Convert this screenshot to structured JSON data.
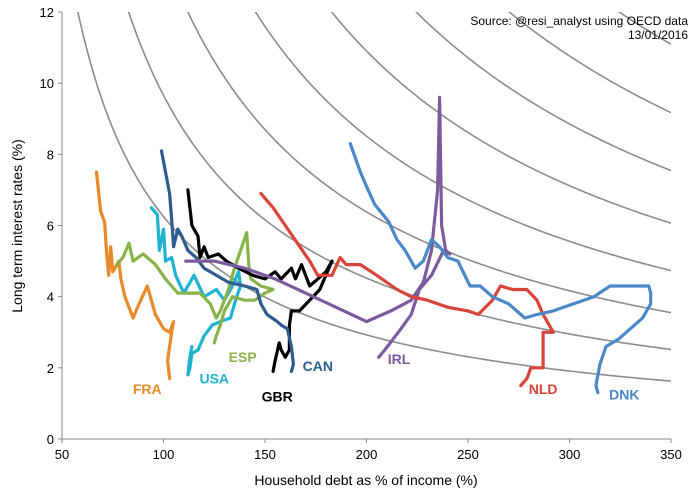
{
  "chart_data": {
    "type": "line",
    "title": "",
    "xlabel": "Household debt as % of income (%)",
    "ylabel": "Long term interest rates (%)",
    "xlim": [
      50,
      350
    ],
    "ylim": [
      0,
      12
    ],
    "xticks": [
      50,
      100,
      150,
      200,
      250,
      300,
      350
    ],
    "yticks": [
      0,
      2,
      4,
      6,
      8,
      10,
      12
    ],
    "grid": false,
    "source_line1": "Source: @resi_analyst using OECD data",
    "source_line2": "13/01/2016",
    "iso_curve_color": "#8c8c8c",
    "iso_curves": [
      {
        "k": 0.55
      },
      {
        "k": 0.85
      },
      {
        "k": 1.2
      },
      {
        "k": 1.6
      },
      {
        "k": 2.05
      },
      {
        "k": 2.55
      },
      {
        "k": 3.1
      },
      {
        "k": 3.75
      },
      {
        "k": 4.45
      }
    ],
    "series": [
      {
        "name": "FRA",
        "color": "#e8892a",
        "points": [
          [
            67,
            7.5
          ],
          [
            69,
            6.4
          ],
          [
            71,
            6.1
          ],
          [
            72,
            5.2
          ],
          [
            73,
            4.6
          ],
          [
            74,
            5.4
          ],
          [
            75,
            4.7
          ],
          [
            78,
            5.0
          ],
          [
            79,
            4.5
          ],
          [
            81,
            4.0
          ],
          [
            85,
            3.4
          ],
          [
            88,
            3.8
          ],
          [
            92,
            4.3
          ],
          [
            96,
            3.5
          ],
          [
            100,
            3.1
          ],
          [
            103,
            3.0
          ],
          [
            105,
            3.3
          ],
          [
            104,
            3.0
          ],
          [
            102,
            2.2
          ],
          [
            103,
            1.7
          ]
        ]
      },
      {
        "name": "USA",
        "color": "#1db3d1",
        "points": [
          [
            94,
            6.5
          ],
          [
            97,
            6.3
          ],
          [
            98,
            5.3
          ],
          [
            100,
            5.9
          ],
          [
            101,
            5.0
          ],
          [
            104,
            5.1
          ],
          [
            106,
            4.6
          ],
          [
            110,
            4.1
          ],
          [
            115,
            4.6
          ],
          [
            120,
            4.0
          ],
          [
            126,
            4.2
          ],
          [
            130,
            3.9
          ],
          [
            134,
            4.3
          ],
          [
            137,
            4.7
          ],
          [
            138,
            4.3
          ],
          [
            136,
            4.0
          ],
          [
            135,
            3.8
          ],
          [
            133,
            3.4
          ],
          [
            128,
            3.3
          ],
          [
            124,
            3.2
          ],
          [
            120,
            2.9
          ],
          [
            117,
            2.5
          ],
          [
            114,
            2.4
          ],
          [
            113,
            2.0
          ],
          [
            112,
            1.8
          ],
          [
            113,
            2.3
          ],
          [
            114,
            2.6
          ]
        ]
      },
      {
        "name": "ESP",
        "color": "#88b34a",
        "points": [
          [
            77,
            4.9
          ],
          [
            80,
            5.1
          ],
          [
            83,
            5.5
          ],
          [
            85,
            5.0
          ],
          [
            90,
            5.2
          ],
          [
            96,
            4.9
          ],
          [
            101,
            4.5
          ],
          [
            104,
            4.3
          ],
          [
            107,
            4.1
          ],
          [
            113,
            4.1
          ],
          [
            118,
            4.1
          ],
          [
            123,
            3.8
          ],
          [
            126,
            3.4
          ],
          [
            128,
            3.6
          ],
          [
            132,
            4.2
          ],
          [
            135,
            4.8
          ],
          [
            138,
            5.3
          ],
          [
            141,
            5.8
          ],
          [
            142,
            4.9
          ],
          [
            143,
            4.5
          ],
          [
            148,
            4.3
          ],
          [
            154,
            4.2
          ],
          [
            150,
            4.1
          ],
          [
            145,
            3.9
          ],
          [
            140,
            3.9
          ],
          [
            134,
            4.0
          ],
          [
            130,
            3.6
          ],
          [
            128,
            3.2
          ],
          [
            126,
            2.9
          ],
          [
            125,
            2.7
          ]
        ]
      },
      {
        "name": "GBR",
        "color": "#000000",
        "points": [
          [
            112,
            7.0
          ],
          [
            114,
            6.0
          ],
          [
            117,
            5.7
          ],
          [
            118,
            5.1
          ],
          [
            120,
            5.4
          ],
          [
            122,
            5.1
          ],
          [
            127,
            5.2
          ],
          [
            131,
            5.0
          ],
          [
            137,
            4.8
          ],
          [
            144,
            4.6
          ],
          [
            150,
            4.5
          ],
          [
            155,
            4.7
          ],
          [
            158,
            4.5
          ],
          [
            163,
            4.8
          ],
          [
            165,
            4.5
          ],
          [
            168,
            4.9
          ],
          [
            170,
            4.6
          ],
          [
            172,
            4.3
          ],
          [
            176,
            4.5
          ],
          [
            180,
            4.7
          ],
          [
            183,
            5.0
          ],
          [
            177,
            4.2
          ],
          [
            172,
            3.9
          ],
          [
            167,
            3.6
          ],
          [
            163,
            3.6
          ],
          [
            162,
            3.2
          ],
          [
            162,
            2.5
          ],
          [
            160,
            2.3
          ],
          [
            158,
            2.5
          ],
          [
            157,
            2.7
          ],
          [
            155,
            2.2
          ],
          [
            154,
            1.9
          ]
        ]
      },
      {
        "name": "CAN",
        "color": "#2e5c8f",
        "points": [
          [
            99,
            8.1
          ],
          [
            101,
            7.5
          ],
          [
            103,
            6.9
          ],
          [
            104,
            6.2
          ],
          [
            105,
            5.4
          ],
          [
            107,
            5.9
          ],
          [
            109,
            5.7
          ],
          [
            112,
            5.3
          ],
          [
            116,
            5.1
          ],
          [
            120,
            4.8
          ],
          [
            126,
            4.6
          ],
          [
            132,
            4.4
          ],
          [
            140,
            4.3
          ],
          [
            146,
            4.2
          ],
          [
            148,
            3.8
          ],
          [
            151,
            3.5
          ],
          [
            156,
            3.3
          ],
          [
            158,
            3.2
          ],
          [
            161,
            3.1
          ],
          [
            163,
            2.6
          ],
          [
            164,
            2.1
          ],
          [
            163,
            1.9
          ]
        ]
      },
      {
        "name": "IRL",
        "color": "#7b5a9e",
        "points": [
          [
            111,
            5.0
          ],
          [
            125,
            5.0
          ],
          [
            140,
            4.8
          ],
          [
            155,
            4.5
          ],
          [
            170,
            4.1
          ],
          [
            185,
            3.7
          ],
          [
            200,
            3.3
          ],
          [
            212,
            3.6
          ],
          [
            222,
            3.9
          ],
          [
            228,
            4.4
          ],
          [
            232,
            5.3
          ],
          [
            235,
            7.0
          ],
          [
            236,
            9.6
          ],
          [
            237,
            6.0
          ],
          [
            239,
            5.3
          ],
          [
            241,
            5.2
          ],
          [
            238,
            5.3
          ],
          [
            232,
            4.6
          ],
          [
            226,
            4.2
          ],
          [
            222,
            3.5
          ],
          [
            217,
            3.1
          ],
          [
            213,
            2.8
          ],
          [
            209,
            2.5
          ],
          [
            206,
            2.3
          ]
        ]
      },
      {
        "name": "NLD",
        "color": "#d9443a",
        "points": [
          [
            148,
            6.9
          ],
          [
            154,
            6.5
          ],
          [
            160,
            6.0
          ],
          [
            166,
            5.5
          ],
          [
            172,
            5.0
          ],
          [
            176,
            4.6
          ],
          [
            183,
            4.6
          ],
          [
            187,
            5.1
          ],
          [
            190,
            4.9
          ],
          [
            197,
            4.9
          ],
          [
            205,
            4.6
          ],
          [
            215,
            4.2
          ],
          [
            222,
            4.0
          ],
          [
            230,
            3.9
          ],
          [
            240,
            3.7
          ],
          [
            250,
            3.6
          ],
          [
            255,
            3.5
          ],
          [
            262,
            3.9
          ],
          [
            266,
            4.3
          ],
          [
            272,
            4.2
          ],
          [
            279,
            4.2
          ],
          [
            284,
            3.9
          ],
          [
            287,
            3.5
          ],
          [
            289,
            3.3
          ],
          [
            292,
            3.0
          ],
          [
            287,
            3.0
          ],
          [
            287,
            2.3
          ],
          [
            287,
            2.0
          ],
          [
            281,
            2.0
          ],
          [
            279,
            1.7
          ],
          [
            276,
            1.5
          ]
        ]
      },
      {
        "name": "DNK",
        "color": "#4a88c7",
        "points": [
          [
            192,
            8.3
          ],
          [
            197,
            7.5
          ],
          [
            200,
            7.1
          ],
          [
            204,
            6.6
          ],
          [
            211,
            6.1
          ],
          [
            215,
            5.6
          ],
          [
            219,
            5.3
          ],
          [
            222,
            5.0
          ],
          [
            224,
            4.8
          ],
          [
            228,
            5.0
          ],
          [
            232,
            5.6
          ],
          [
            236,
            5.4
          ],
          [
            240,
            5.1
          ],
          [
            245,
            5.0
          ],
          [
            251,
            4.3
          ],
          [
            256,
            4.3
          ],
          [
            262,
            4.0
          ],
          [
            270,
            3.8
          ],
          [
            278,
            3.4
          ],
          [
            284,
            3.5
          ],
          [
            292,
            3.6
          ],
          [
            302,
            3.8
          ],
          [
            312,
            4.0
          ],
          [
            320,
            4.3
          ],
          [
            328,
            4.3
          ],
          [
            339,
            4.3
          ],
          [
            340,
            4.1
          ],
          [
            340,
            3.8
          ],
          [
            336,
            3.4
          ],
          [
            330,
            3.1
          ],
          [
            324,
            2.8
          ],
          [
            318,
            2.6
          ],
          [
            315,
            2.1
          ],
          [
            314,
            1.8
          ],
          [
            313,
            1.5
          ],
          [
            314,
            1.3
          ]
        ]
      }
    ],
    "labels": [
      {
        "text": "FRA",
        "series": "FRA",
        "x": 92,
        "y": 1.4
      },
      {
        "text": "USA",
        "series": "USA",
        "x": 125,
        "y": 1.7
      },
      {
        "text": "ESP",
        "series": "ESP",
        "x": 139,
        "y": 2.3
      },
      {
        "text": "GBR",
        "series": "GBR",
        "x": 156,
        "y": 1.2
      },
      {
        "text": "CAN",
        "series": "CAN",
        "x": 176,
        "y": 2.05
      },
      {
        "text": "IRL",
        "series": "IRL",
        "x": 216,
        "y": 2.25
      },
      {
        "text": "NLD",
        "series": "NLD",
        "x": 287,
        "y": 1.4
      },
      {
        "text": "DNK",
        "series": "DNK",
        "x": 327,
        "y": 1.25
      }
    ]
  }
}
